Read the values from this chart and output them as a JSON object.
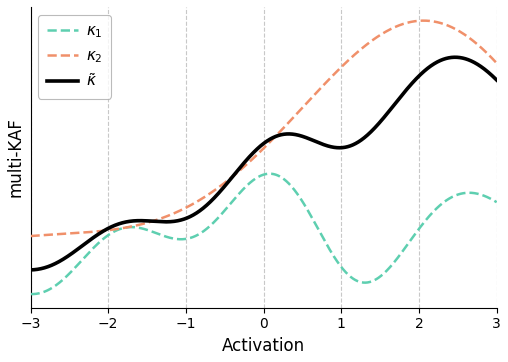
{
  "xlim": [
    -3,
    3
  ],
  "xlabel": "Activation",
  "ylabel": "multi-KAF",
  "xticks": [
    -3,
    -2,
    -1,
    0,
    1,
    2,
    3
  ],
  "grid_color": "#c8c8c8",
  "background_color": "#ffffff",
  "color_k1": "#5ecfb0",
  "color_k2": "#f0906a",
  "color_ktilde": "#000000",
  "legend_labels": [
    "$\\kappa_1$",
    "$\\kappa_2$",
    "$\\tilde{\\kappa}$"
  ],
  "linewidth_dashed": 1.8,
  "linewidth_solid": 2.6,
  "figsize": [
    5.08,
    3.62
  ],
  "dpi": 100
}
